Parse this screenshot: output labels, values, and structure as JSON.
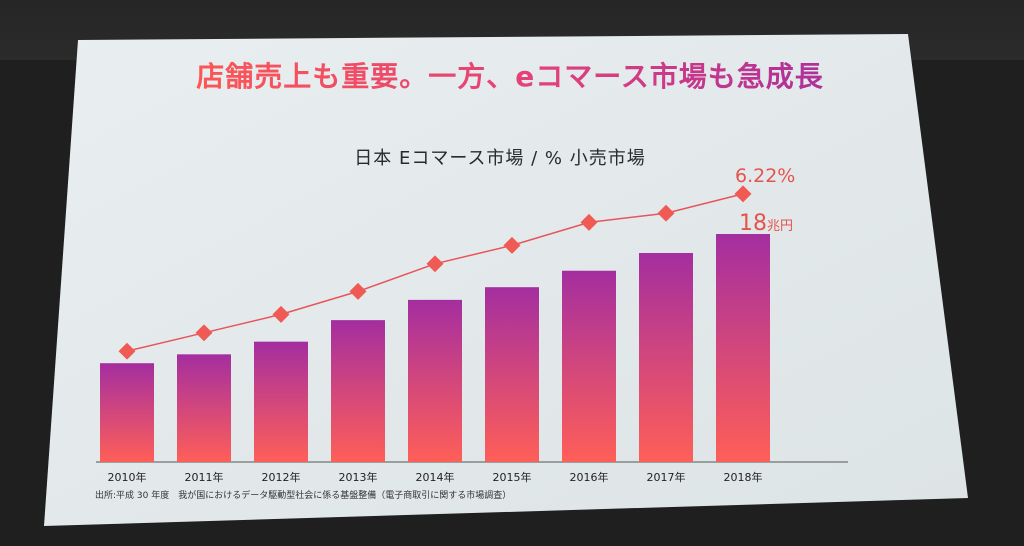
{
  "slide": {
    "title": "店舗売上も重要。一方、eコマース市場も急成長",
    "subtitle": "日本 Eコマース市場 / % 小売市場",
    "source": "出所:平成 30 年度　我が国におけるデータ駆動型社会に係る基盤整備（電子商取引に関する市場調査）"
  },
  "colors": {
    "bar_top": "#a42ea0",
    "bar_bottom": "#ff5f58",
    "line": "#e8545a",
    "marker": "#f05a55",
    "label": "#e5534d"
  },
  "chart_data": {
    "type": "bar",
    "categories": [
      "2010年",
      "2011年",
      "2012年",
      "2013年",
      "2014年",
      "2015年",
      "2016年",
      "2017年",
      "2018年"
    ],
    "series": [
      {
        "values": [
          7.8,
          8.5,
          9.5,
          11.2,
          12.8,
          13.8,
          15.1,
          16.5,
          18.0
        ]
      },
      {
        "type": "line",
        "values": [
          2.8,
          3.2,
          3.6,
          4.1,
          4.7,
          5.1,
          5.6,
          5.8,
          6.22
        ]
      }
    ],
    "annotations": [
      {
        "text": "6.22%"
      },
      {
        "text": "18",
        "unit": "兆円"
      }
    ],
    "legend": "none",
    "grid": false
  }
}
